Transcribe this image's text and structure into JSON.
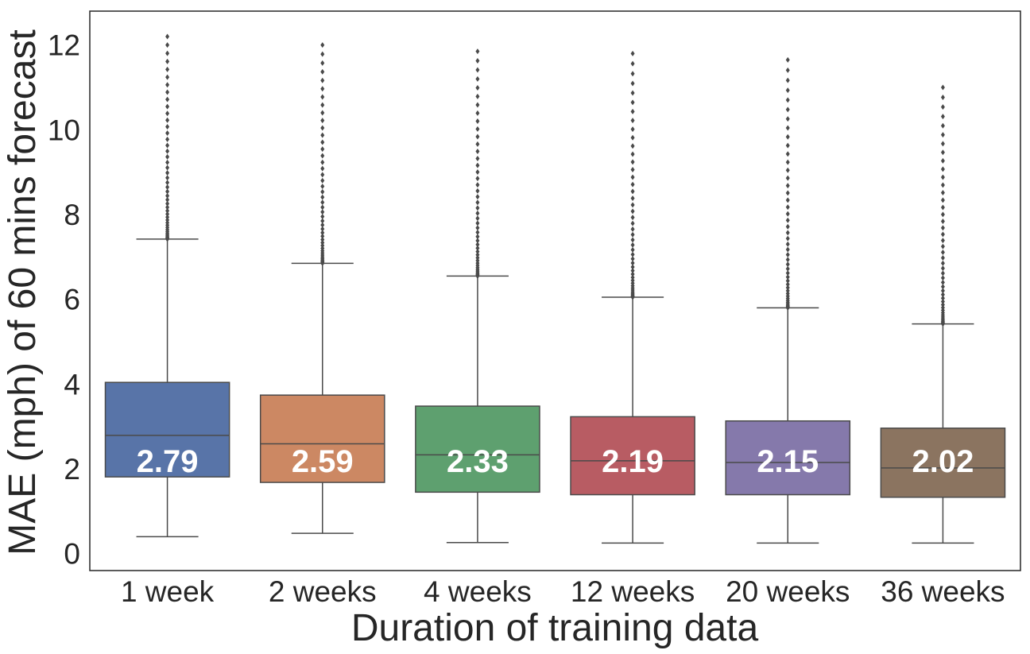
{
  "chart_data": {
    "type": "box",
    "title": "",
    "xlabel": "Duration of training data",
    "ylabel": "MAE (mph) of 60 mins forecast",
    "categories": [
      "1 week",
      "2 weeks",
      "4 weeks",
      "12 weeks",
      "20 weeks",
      "36 weeks"
    ],
    "ylim": [
      -0.4,
      12.8
    ],
    "yticks": [
      0,
      2,
      4,
      6,
      8,
      10,
      12
    ],
    "grid": false,
    "legend": "none",
    "median_labels": [
      "2.79",
      "2.59",
      "2.33",
      "2.19",
      "2.15",
      "2.02"
    ],
    "boxes": [
      {
        "category": "1 week",
        "color": "#5874a8",
        "whisker_low": 0.4,
        "q1": 1.81,
        "median": 2.79,
        "q3": 4.04,
        "whisker_high": 7.42,
        "outlier_max": 12.2
      },
      {
        "category": "2 weeks",
        "color": "#cc8863",
        "whisker_low": 0.48,
        "q1": 1.68,
        "median": 2.59,
        "q3": 3.74,
        "whisker_high": 6.85,
        "outlier_max": 12.0
      },
      {
        "category": "4 weeks",
        "color": "#5ea06f",
        "whisker_low": 0.26,
        "q1": 1.45,
        "median": 2.33,
        "q3": 3.48,
        "whisker_high": 6.55,
        "outlier_max": 11.85
      },
      {
        "category": "12 weeks",
        "color": "#b85c63",
        "whisker_low": 0.25,
        "q1": 1.39,
        "median": 2.19,
        "q3": 3.23,
        "whisker_high": 6.05,
        "outlier_max": 11.8
      },
      {
        "category": "20 weeks",
        "color": "#8579ab",
        "whisker_low": 0.25,
        "q1": 1.39,
        "median": 2.15,
        "q3": 3.13,
        "whisker_high": 5.8,
        "outlier_max": 11.65
      },
      {
        "category": "36 weeks",
        "color": "#8b7460",
        "whisker_low": 0.25,
        "q1": 1.33,
        "median": 2.02,
        "q3": 2.96,
        "whisker_high": 5.42,
        "outlier_max": 11.0
      }
    ],
    "line_color": "#4a4a4a",
    "text_color": "#262626"
  }
}
